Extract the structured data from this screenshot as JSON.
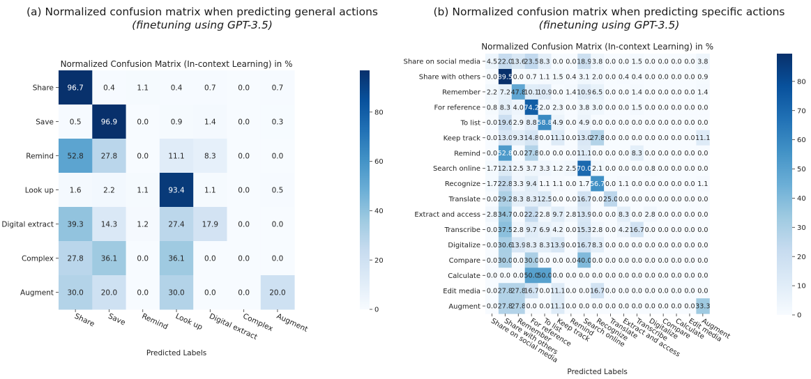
{
  "panels": [
    {
      "title": "(a) Normalized confusion matrix when predicting general actions",
      "subtitle": "(finetuning using GPT-3.5)"
    },
    {
      "title": "(b) Normalized confusion matrix when predicting specific actions",
      "subtitle": "(finetuning using GPT-3.5)"
    }
  ],
  "chart_data": [
    {
      "type": "heatmap",
      "title": "Normalized Confusion Matrix (In-context Learning) in %",
      "xlabel": "Predicted Labels",
      "ylabel": "",
      "x_categories": [
        "Share",
        "Save",
        "Remind",
        "Look up",
        "Digital extract",
        "Complex",
        "Augment"
      ],
      "y_categories": [
        "Share",
        "Save",
        "Remind",
        "Look up",
        "Digital extract",
        "Complex",
        "Augment"
      ],
      "values": [
        [
          96.7,
          0.4,
          1.1,
          0.4,
          0.7,
          0.0,
          0.7
        ],
        [
          0.5,
          96.9,
          0.0,
          0.9,
          1.4,
          0.0,
          0.3
        ],
        [
          52.8,
          27.8,
          0.0,
          11.1,
          8.3,
          0.0,
          0.0
        ],
        [
          1.6,
          2.2,
          1.1,
          93.4,
          1.1,
          0.0,
          0.5
        ],
        [
          39.3,
          14.3,
          1.2,
          27.4,
          17.9,
          0.0,
          0.0
        ],
        [
          27.8,
          36.1,
          0.0,
          36.1,
          0.0,
          0.0,
          0.0
        ],
        [
          30.0,
          20.0,
          0.0,
          30.0,
          0.0,
          0.0,
          20.0
        ]
      ],
      "colorbar": {
        "ticks": [
          "0",
          "20",
          "40",
          "60",
          "80"
        ],
        "range": [
          0,
          96.9
        ]
      },
      "colormap": [
        "#f7fbff",
        "#deebf7",
        "#c6dbef",
        "#9ecae1",
        "#6baed6",
        "#4292c6",
        "#2171b5",
        "#08519c",
        "#08306b"
      ]
    },
    {
      "type": "heatmap",
      "title": "Normalized Confusion Matrix (In-context Learning) in %",
      "xlabel": "Predicted Labels",
      "ylabel": "",
      "x_categories": [
        "Share on social media",
        "Share with others",
        "Remember",
        "For reference",
        "To list",
        "Keep track",
        "Remind",
        "Search online",
        "Recognize",
        "Translate",
        "Extract and access",
        "Transcribe",
        "Digitalize",
        "Compare",
        "Calculate",
        "Edit media",
        "Augment"
      ],
      "y_categories": [
        "Share on social media",
        "Share with others",
        "Remember",
        "For reference",
        "To list",
        "Keep track",
        "Remind",
        "Search online",
        "Recognize",
        "Translate",
        "Extract and access",
        "Transcribe",
        "Digitalize",
        "Compare",
        "Calculate",
        "Edit media",
        "Augment"
      ],
      "values": [
        [
          4.5,
          22.0,
          13.6,
          23.5,
          8.3,
          0.0,
          0.0,
          18.9,
          3.8,
          0.0,
          0.0,
          1.5,
          0.0,
          0.0,
          0.0,
          0.0,
          3.8
        ],
        [
          0.0,
          89.5,
          0.0,
          0.7,
          1.1,
          1.5,
          0.4,
          3.1,
          2.0,
          0.0,
          0.4,
          0.4,
          0.0,
          0.0,
          0.0,
          0.0,
          0.9
        ],
        [
          2.2,
          7.2,
          47.8,
          10.1,
          10.9,
          0.0,
          1.4,
          10.9,
          6.5,
          0.0,
          0.0,
          1.4,
          0.0,
          0.0,
          0.0,
          0.0,
          1.4
        ],
        [
          0.8,
          8.3,
          4.0,
          74.2,
          2.0,
          2.3,
          0.0,
          3.8,
          3.0,
          0.0,
          0.0,
          1.5,
          0.0,
          0.0,
          0.0,
          0.0,
          0.0
        ],
        [
          0.0,
          19.6,
          2.9,
          8.8,
          58.8,
          4.9,
          0.0,
          4.9,
          0.0,
          0.0,
          0.0,
          0.0,
          0.0,
          0.0,
          0.0,
          0.0,
          0.0
        ],
        [
          0.0,
          13.0,
          9.3,
          14.8,
          0.0,
          11.1,
          0.0,
          13.0,
          27.8,
          0.0,
          0.0,
          0.0,
          0.0,
          0.0,
          0.0,
          0.0,
          11.1
        ],
        [
          0.0,
          52.8,
          0.0,
          27.8,
          0.0,
          0.0,
          0.0,
          11.1,
          0.0,
          0.0,
          0.0,
          8.3,
          0.0,
          0.0,
          0.0,
          0.0,
          0.0
        ],
        [
          1.7,
          12.1,
          2.5,
          3.7,
          3.3,
          1.2,
          2.5,
          70.0,
          2.1,
          0.0,
          0.0,
          0.0,
          0.8,
          0.0,
          0.0,
          0.0,
          0.0
        ],
        [
          1.7,
          22.8,
          3.3,
          9.4,
          1.1,
          1.1,
          0.0,
          1.7,
          56.7,
          0.0,
          1.1,
          0.0,
          0.0,
          0.0,
          0.0,
          0.0,
          1.1
        ],
        [
          0.0,
          29.2,
          8.3,
          8.3,
          12.5,
          0.0,
          0.0,
          16.7,
          0.0,
          25.0,
          0.0,
          0.0,
          0.0,
          0.0,
          0.0,
          0.0,
          0.0
        ],
        [
          2.8,
          34.7,
          0.0,
          22.2,
          2.8,
          9.7,
          2.8,
          13.9,
          0.0,
          0.0,
          8.3,
          0.0,
          2.8,
          0.0,
          0.0,
          0.0,
          0.0
        ],
        [
          0.0,
          37.5,
          2.8,
          9.7,
          6.9,
          4.2,
          0.0,
          15.3,
          2.8,
          0.0,
          4.2,
          16.7,
          0.0,
          0.0,
          0.0,
          0.0,
          0.0
        ],
        [
          0.0,
          30.6,
          13.9,
          8.3,
          8.3,
          13.9,
          0.0,
          16.7,
          8.3,
          0.0,
          0.0,
          0.0,
          0.0,
          0.0,
          0.0,
          0.0,
          0.0
        ],
        [
          0.0,
          30.0,
          0.0,
          30.0,
          0.0,
          0.0,
          0.0,
          40.0,
          0.0,
          0.0,
          0.0,
          0.0,
          0.0,
          0.0,
          0.0,
          0.0,
          0.0
        ],
        [
          0.0,
          0.0,
          0.0,
          50.0,
          50.0,
          0.0,
          0.0,
          0.0,
          0.0,
          0.0,
          0.0,
          0.0,
          0.0,
          0.0,
          0.0,
          0.0,
          0.0
        ],
        [
          0.0,
          27.8,
          27.8,
          16.7,
          0.0,
          11.1,
          0.0,
          0.0,
          16.7,
          0.0,
          0.0,
          0.0,
          0.0,
          0.0,
          0.0,
          0.0,
          0.0
        ],
        [
          0.0,
          27.8,
          27.8,
          0.0,
          0.0,
          11.1,
          0.0,
          0.0,
          0.0,
          0.0,
          0.0,
          0.0,
          0.0,
          0.0,
          0.0,
          0.0,
          33.3
        ]
      ],
      "colorbar": {
        "ticks": [
          "0",
          "10",
          "20",
          "30",
          "40",
          "50",
          "60",
          "70",
          "80"
        ],
        "range": [
          0,
          89.5
        ]
      },
      "colormap": [
        "#f7fbff",
        "#deebf7",
        "#c6dbef",
        "#9ecae1",
        "#6baed6",
        "#4292c6",
        "#2171b5",
        "#08519c",
        "#08306b"
      ]
    }
  ]
}
